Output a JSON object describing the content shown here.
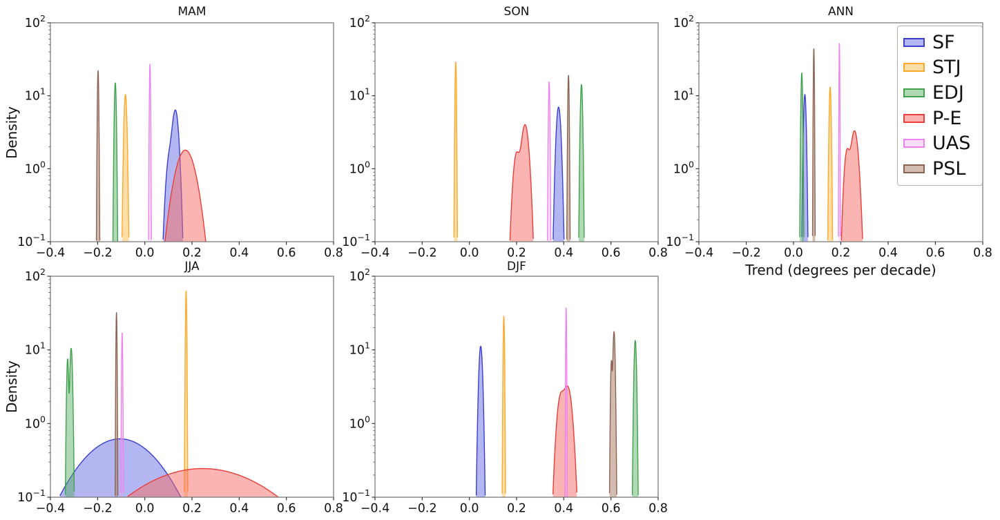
{
  "figure": {
    "background": "#ffffff",
    "description": "Kernel density distributions of trends per season (MAM, SON, ANN, JJA, DJF) for six variables, log-scale density axis"
  },
  "chart_data": {
    "type": "area",
    "variant": "kde-density",
    "xlabel": "Trend (degrees per decade)",
    "ylabel": "Density",
    "xlim": [
      -0.4,
      0.8
    ],
    "xticks": [
      -0.4,
      -0.2,
      0.0,
      0.2,
      0.4,
      0.6,
      0.8
    ],
    "yscale": "log",
    "ylim": [
      0.1,
      100
    ],
    "yticks_exponents": [
      2,
      1,
      0,
      -1
    ],
    "grid": false,
    "legend_position": "upper right of ANN panel",
    "series": [
      {
        "name": "SF",
        "edge": "#3a3fd1",
        "fill": "rgba(77,82,221,0.42)"
      },
      {
        "name": "STJ",
        "edge": "#ffa829",
        "fill": "rgba(255,190,80,0.50)"
      },
      {
        "name": "EDJ",
        "edge": "#41a14e",
        "fill": "rgba(80,170,90,0.45)"
      },
      {
        "name": "P-E",
        "edge": "#ea3e39",
        "fill": "rgba(246,105,100,0.50)"
      },
      {
        "name": "UAS",
        "edge": "#ee82ee",
        "fill": "rgba(240,160,242,0.35)"
      },
      {
        "name": "PSL",
        "edge": "#8c6454",
        "fill": "rgba(165,120,95,0.50)"
      }
    ],
    "subplots": [
      {
        "title": "MAM",
        "curves": [
          {
            "series": "SF",
            "components": [
              {
                "center": 0.13,
                "peak": 6.2,
                "sigma": 0.011
              },
              {
                "center": 0.105,
                "peak": 1.5,
                "sigma": 0.012
              }
            ]
          },
          {
            "series": "STJ",
            "components": [
              {
                "center": -0.082,
                "peak": 10.4,
                "sigma": 0.0048
              }
            ]
          },
          {
            "series": "EDJ",
            "components": [
              {
                "center": -0.125,
                "peak": 15.0,
                "sigma": 0.0032
              }
            ]
          },
          {
            "series": "P-E",
            "components": [
              {
                "center": 0.172,
                "peak": 1.8,
                "sigma": 0.036
              }
            ]
          },
          {
            "series": "UAS",
            "components": [
              {
                "center": 0.022,
                "peak": 27.0,
                "sigma": 0.0018
              }
            ]
          },
          {
            "series": "PSL",
            "components": [
              {
                "center": -0.198,
                "peak": 22.0,
                "sigma": 0.0022
              }
            ]
          }
        ]
      },
      {
        "title": "SON",
        "curves": [
          {
            "series": "SF",
            "components": [
              {
                "center": 0.378,
                "peak": 7.0,
                "sigma": 0.008
              }
            ]
          },
          {
            "series": "STJ",
            "components": [
              {
                "center": -0.058,
                "peak": 29.0,
                "sigma": 0.0022
              }
            ]
          },
          {
            "series": "EDJ",
            "components": [
              {
                "center": 0.475,
                "peak": 14.2,
                "sigma": 0.0037
              }
            ]
          },
          {
            "series": "P-E",
            "components": [
              {
                "center": 0.236,
                "peak": 4.0,
                "sigma": 0.013
              },
              {
                "center": 0.2,
                "peak": 1.6,
                "sigma": 0.012
              }
            ]
          },
          {
            "series": "UAS",
            "components": [
              {
                "center": 0.338,
                "peak": 15.5,
                "sigma": 0.0022
              }
            ]
          },
          {
            "series": "PSL",
            "components": [
              {
                "center": 0.42,
                "peak": 19.0,
                "sigma": 0.0022
              }
            ]
          }
        ]
      },
      {
        "title": "ANN",
        "curves": [
          {
            "series": "SF",
            "components": [
              {
                "center": 0.048,
                "peak": 10.4,
                "sigma": 0.0043
              }
            ]
          },
          {
            "series": "STJ",
            "components": [
              {
                "center": 0.155,
                "peak": 13.2,
                "sigma": 0.0033
              }
            ]
          },
          {
            "series": "EDJ",
            "components": [
              {
                "center": 0.035,
                "peak": 20.5,
                "sigma": 0.0027
              }
            ]
          },
          {
            "series": "P-E",
            "components": [
              {
                "center": 0.258,
                "peak": 3.3,
                "sigma": 0.013
              },
              {
                "center": 0.226,
                "peak": 1.7,
                "sigma": 0.01
              }
            ]
          },
          {
            "series": "UAS",
            "components": [
              {
                "center": 0.194,
                "peak": 52.0,
                "sigma": 0.0012
              }
            ]
          },
          {
            "series": "PSL",
            "components": [
              {
                "center": 0.086,
                "peak": 44.0,
                "sigma": 0.0016
              }
            ]
          }
        ]
      },
      {
        "title": "JJA",
        "curves": [
          {
            "series": "SF",
            "components": [
              {
                "center": -0.105,
                "peak": 0.62,
                "sigma": 0.135
              }
            ]
          },
          {
            "series": "STJ",
            "components": [
              {
                "center": 0.175,
                "peak": 63.0,
                "sigma": 0.002
              }
            ]
          },
          {
            "series": "EDJ",
            "components": [
              {
                "center": -0.312,
                "peak": 10.5,
                "sigma": 0.0043
              },
              {
                "center": -0.327,
                "peak": 7.5,
                "sigma": 0.0033
              }
            ]
          },
          {
            "series": "P-E",
            "components": [
              {
                "center": 0.245,
                "peak": 0.245,
                "sigma": 0.24
              }
            ]
          },
          {
            "series": "UAS",
            "components": [
              {
                "center": -0.096,
                "peak": 17.0,
                "sigma": 0.0017
              }
            ]
          },
          {
            "series": "PSL",
            "components": [
              {
                "center": -0.12,
                "peak": 32.0,
                "sigma": 0.0017
              }
            ]
          }
        ]
      },
      {
        "title": "DJF",
        "curves": [
          {
            "series": "SF",
            "components": [
              {
                "center": 0.048,
                "peak": 11.2,
                "sigma": 0.0062
              }
            ]
          },
          {
            "series": "STJ",
            "components": [
              {
                "center": 0.146,
                "peak": 28.5,
                "sigma": 0.0021
              }
            ]
          },
          {
            "series": "EDJ",
            "components": [
              {
                "center": 0.703,
                "peak": 13.4,
                "sigma": 0.004
              }
            ]
          },
          {
            "series": "P-E",
            "components": [
              {
                "center": 0.417,
                "peak": 3.1,
                "sigma": 0.015
              },
              {
                "center": 0.386,
                "peak": 2.2,
                "sigma": 0.013
              }
            ]
          },
          {
            "series": "UAS",
            "components": [
              {
                "center": 0.41,
                "peak": 37.0,
                "sigma": 0.0014
              }
            ]
          },
          {
            "series": "PSL",
            "components": [
              {
                "center": 0.613,
                "peak": 17.7,
                "sigma": 0.0036
              },
              {
                "center": 0.602,
                "peak": 7.0,
                "sigma": 0.0028
              }
            ]
          }
        ]
      }
    ]
  }
}
